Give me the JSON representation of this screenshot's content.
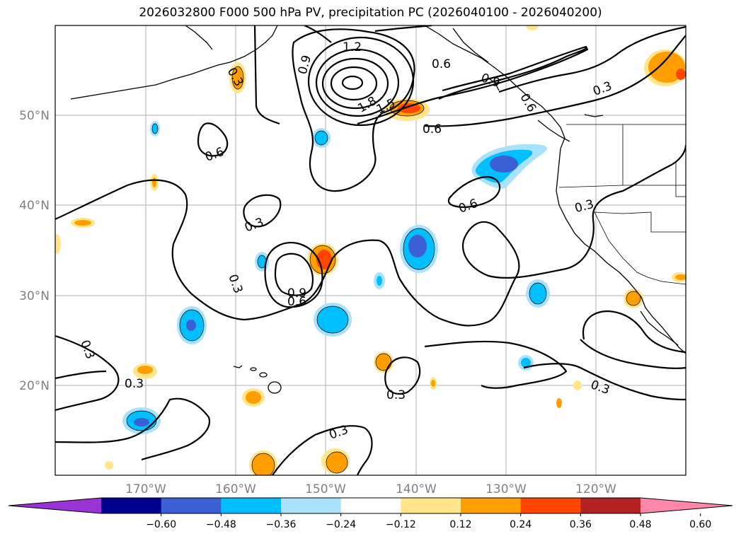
{
  "title": "2026032800 F000 500 hPa PV, precipitation PC (2026040100 - 2026040200)",
  "map": {
    "lat_labels": [
      "50°N",
      "40°N",
      "30°N",
      "20°N"
    ],
    "lon_labels": [
      "170°W",
      "160°W",
      "150°W",
      "140°W",
      "130°W",
      "120°W"
    ],
    "contour_labels": [
      "1.2",
      "0.9",
      "1.8",
      "1.5",
      "0.6",
      "0.6",
      "0.6",
      "0.3",
      "0.3",
      "0.3",
      "0.6",
      "0.9",
      "0.6",
      "0.3",
      "0.3",
      "0.3",
      "0.3",
      "0.3",
      "0.3",
      "0.9",
      "0.3",
      "0.6"
    ]
  },
  "colorbar": {
    "ticks": [
      "−0.60",
      "−0.48",
      "−0.36",
      "−0.24",
      "−0.12",
      "0.12",
      "0.24",
      "0.36",
      "0.48",
      "0.60"
    ],
    "colors": [
      "#9a33d6",
      "#00008f",
      "#3b5fd4",
      "#00bfff",
      "#a8e2fb",
      "#ffffff",
      "#ffe68a",
      "#ff9e00",
      "#ff4500",
      "#b22222",
      "#ff88aa"
    ]
  }
}
